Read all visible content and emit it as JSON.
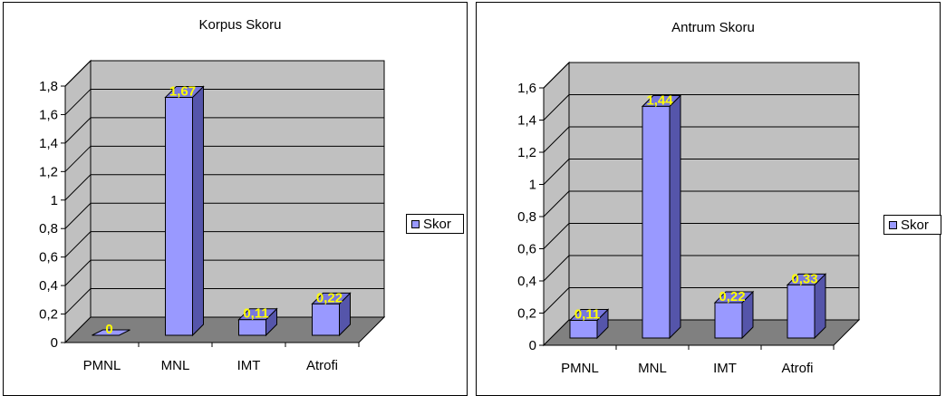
{
  "colors": {
    "bar_front": "#9999ff",
    "bar_side": "#5555aa",
    "bar_top": "#7777dd",
    "wall": "#c0c0c0",
    "floor": "#808080",
    "data_label": "#ffff00"
  },
  "chart_data": [
    {
      "type": "bar",
      "title": "Korpus Skoru",
      "categories": [
        "PMNL",
        "MNL",
        "IMT",
        "Atrofi"
      ],
      "series": [
        {
          "name": "Skor",
          "values": [
            0,
            1.67,
            0.11,
            0.22
          ]
        }
      ],
      "data_labels": [
        "0",
        "1,67",
        "0,11",
        "0,22"
      ],
      "yticks": [
        "0",
        "0,2",
        "0,4",
        "0,6",
        "0,8",
        "1",
        "1,2",
        "1,4",
        "1,6",
        "1,8"
      ],
      "ylim": [
        0,
        1.8
      ],
      "grid": true,
      "legend_position": "right",
      "legend_label": "Skor"
    },
    {
      "type": "bar",
      "title": "Antrum Skoru",
      "categories": [
        "PMNL",
        "MNL",
        "IMT",
        "Atrofi"
      ],
      "series": [
        {
          "name": "Skor",
          "values": [
            0.11,
            1.44,
            0.22,
            0.33
          ]
        }
      ],
      "data_labels": [
        "0,11",
        "1,44",
        "0,22",
        "0,33"
      ],
      "yticks": [
        "0",
        "0,2",
        "0,4",
        "0,6",
        "0,8",
        "1",
        "1,2",
        "1,4",
        "1,6"
      ],
      "ylim": [
        0,
        1.6
      ],
      "grid": true,
      "legend_position": "right",
      "legend_label": "Skor"
    }
  ]
}
